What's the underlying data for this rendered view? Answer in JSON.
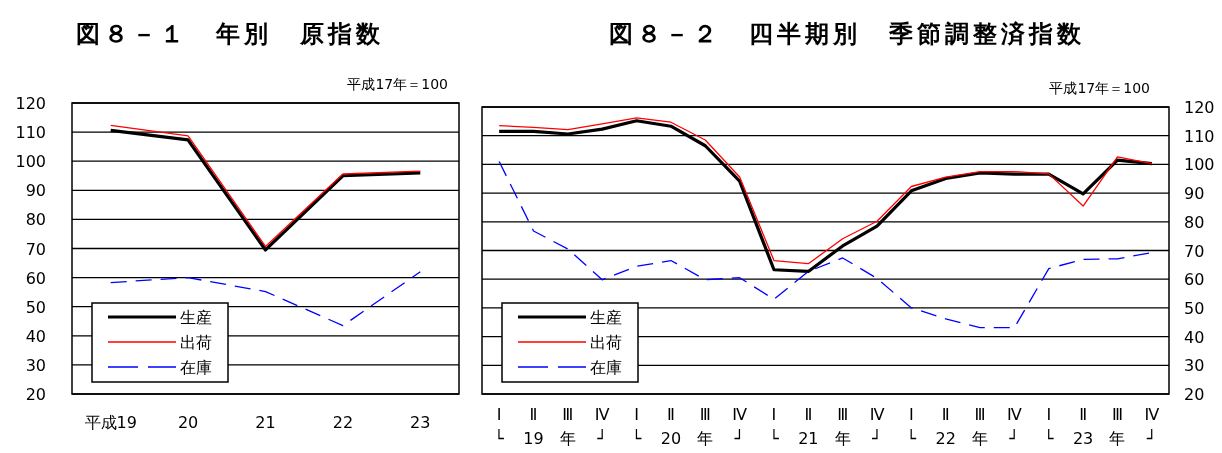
{
  "chart_data": [
    {
      "type": "line",
      "title": "図８－１　年別　原指数",
      "annotations": [
        "平成17年＝100"
      ],
      "categories": [
        "平成19",
        "20",
        "21",
        "22",
        "23"
      ],
      "series": [
        {
          "name": "生産",
          "color": "#000000",
          "values": [
            110.6,
            107.3,
            69.5,
            95,
            96
          ]
        },
        {
          "name": "出荷",
          "color": "#ff0000",
          "values": [
            112.3,
            108.7,
            70.7,
            95.6,
            96.6
          ]
        },
        {
          "name": "在庫",
          "color": "#0000ff",
          "line_style": "dashed",
          "values": [
            58.3,
            60,
            55.2,
            43.5,
            62
          ]
        }
      ],
      "ylim": [
        20,
        120
      ],
      "yticks": [
        20,
        30,
        40,
        50,
        60,
        70,
        80,
        90,
        100,
        110,
        120
      ],
      "grid": "y",
      "legend": "bottom left"
    },
    {
      "type": "line",
      "title": "図８－２　四半期別　季節調整済指数",
      "annotations": [
        "平成17年＝100"
      ],
      "categories": [
        "Ⅰ\n└",
        "Ⅱ\n19",
        "Ⅲ\n年",
        "Ⅳ\n┘",
        "Ⅰ\n└",
        "Ⅱ\n20",
        "Ⅲ\n年",
        "Ⅳ\n┘",
        "Ⅰ\n└",
        "Ⅱ\n21",
        "Ⅲ\n年",
        "Ⅳ\n┘",
        "Ⅰ\n└",
        "Ⅱ\n22",
        "Ⅲ\n年",
        "Ⅳ\n┘",
        "Ⅰ\n└",
        "Ⅱ\n23",
        "Ⅲ\n年",
        "Ⅳ\n┘"
      ],
      "series": [
        {
          "name": "生産",
          "color": "#000000",
          "values": [
            111.5,
            111.5,
            110.6,
            112.3,
            115.2,
            113.3,
            106.5,
            94.2,
            63.3,
            62.7,
            71.6,
            78.5,
            90.8,
            95.1,
            97,
            96.6,
            96.6,
            89.7,
            101.5,
            100.3
          ]
        },
        {
          "name": "出荷",
          "color": "#ff0000",
          "values": [
            113.5,
            112.9,
            112.1,
            114.1,
            116.2,
            114.7,
            108.5,
            95.6,
            66.5,
            65.4,
            74.1,
            80.2,
            92.3,
            95.6,
            97.5,
            97.5,
            96.7,
            85.5,
            102.6,
            100.3
          ]
        },
        {
          "name": "在庫",
          "color": "#0000ff",
          "line_style": "dashed",
          "values": [
            101,
            76.8,
            70.5,
            59.8,
            64.5,
            66.5,
            59.8,
            60.5,
            53,
            62.7,
            67.4,
            60.3,
            50,
            46.2,
            43.1,
            43.1,
            63.7,
            66.9,
            67.1,
            69.3
          ]
        }
      ],
      "ylim": [
        20,
        120
      ],
      "yticks": [
        20,
        30,
        40,
        50,
        60,
        70,
        80,
        90,
        100,
        110,
        120
      ],
      "grid": "y",
      "legend": "bottom left"
    }
  ]
}
